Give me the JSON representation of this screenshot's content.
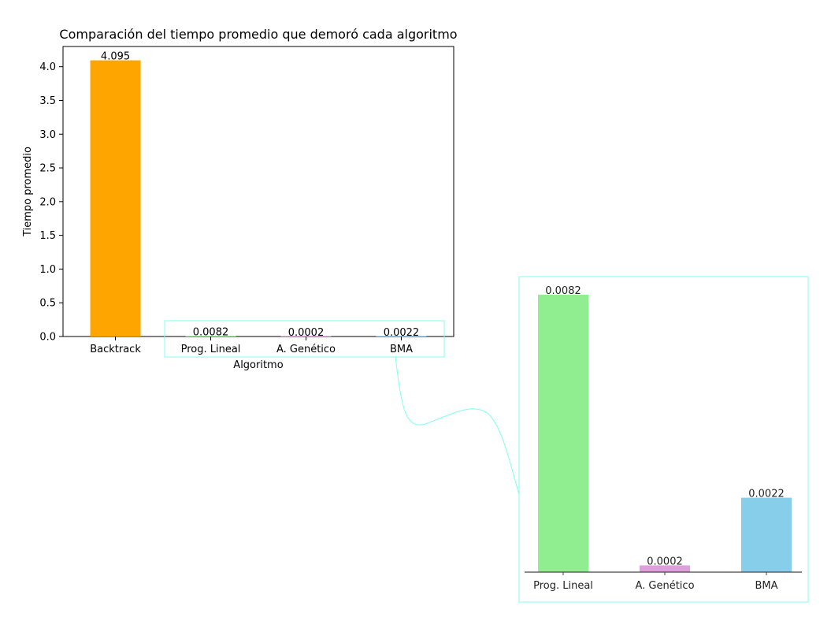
{
  "chart_data": {
    "type": "bar",
    "title": "Comparación del tiempo promedio que demoró cada algoritmo",
    "xlabel": "Algoritmo",
    "ylabel": "Tiempo promedio",
    "categories": [
      "Backtrack",
      "Prog. Lineal",
      "A. Genético",
      "BMA"
    ],
    "values": [
      4.095,
      0.0082,
      0.0002,
      0.0022
    ],
    "value_labels": [
      "4.095",
      "0.0082",
      "0.0002",
      "0.0022"
    ],
    "colors": [
      "#FFA500",
      "#90EE90",
      "#DDA0DD",
      "#87CEEB"
    ],
    "ylim": [
      0,
      4.3
    ],
    "yticks": [
      0.0,
      0.5,
      1.0,
      1.5,
      2.0,
      2.5,
      3.0,
      3.5,
      4.0
    ],
    "ytick_labels": [
      "0.0",
      "0.5",
      "1.0",
      "1.5",
      "2.0",
      "2.5",
      "3.0",
      "3.5",
      "4.0"
    ],
    "grid": false,
    "legend": "none",
    "inset": {
      "categories": [
        "Prog. Lineal",
        "A. Genético",
        "BMA"
      ],
      "values": [
        0.0082,
        0.0002,
        0.0022
      ],
      "value_labels": [
        "0.0082",
        "0.0002",
        "0.0022"
      ],
      "colors": [
        "#90EE90",
        "#DDA0DD",
        "#87CEEB"
      ],
      "frame_color": "#7FFFF0"
    }
  }
}
